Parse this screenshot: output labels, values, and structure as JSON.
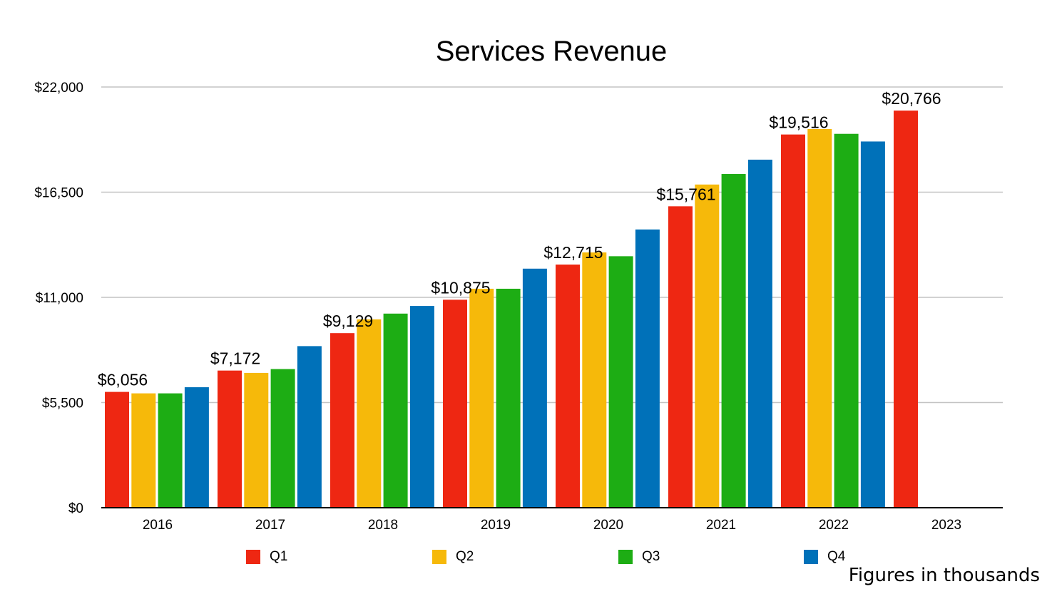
{
  "chart_data": {
    "type": "bar",
    "title": "Services Revenue",
    "note": "Figures in thousands",
    "categories": [
      "2016",
      "2017",
      "2018",
      "2019",
      "2020",
      "2021",
      "2022",
      "2023"
    ],
    "ylim": [
      0,
      22000
    ],
    "yticks": [
      "$0",
      "$5,500",
      "$11,000",
      "$16,500",
      "$22,000"
    ],
    "ytick_values": [
      0,
      5500,
      11000,
      16500,
      22000
    ],
    "grid": true,
    "legend_position": "bottom",
    "series": [
      {
        "name": "Q1",
        "color": "#ee2712",
        "values": [
          6056,
          7172,
          9129,
          10875,
          12715,
          15761,
          19516,
          20766
        ]
      },
      {
        "name": "Q2",
        "color": "#f6b90a",
        "values": [
          5980,
          7050,
          9850,
          11450,
          13350,
          16900,
          19800,
          null
        ]
      },
      {
        "name": "Q3",
        "color": "#1dad14",
        "values": [
          5980,
          7250,
          10150,
          11450,
          13150,
          17450,
          19550,
          null
        ]
      },
      {
        "name": "Q4",
        "color": "#0071b9",
        "values": [
          6300,
          8450,
          10550,
          12500,
          14550,
          18200,
          19150,
          null
        ]
      }
    ],
    "data_labels": [
      {
        "category": "2016",
        "series": "Q1",
        "text": "$6,056"
      },
      {
        "category": "2017",
        "series": "Q1",
        "text": "$7,172"
      },
      {
        "category": "2018",
        "series": "Q1",
        "text": "$9,129"
      },
      {
        "category": "2019",
        "series": "Q1",
        "text": "$10,875"
      },
      {
        "category": "2020",
        "series": "Q1",
        "text": "$12,715"
      },
      {
        "category": "2021",
        "series": "Q1",
        "text": "$15,761"
      },
      {
        "category": "2022",
        "series": "Q1",
        "text": "$19,516"
      },
      {
        "category": "2023",
        "series": "Q1",
        "text": "$20,766"
      }
    ]
  }
}
